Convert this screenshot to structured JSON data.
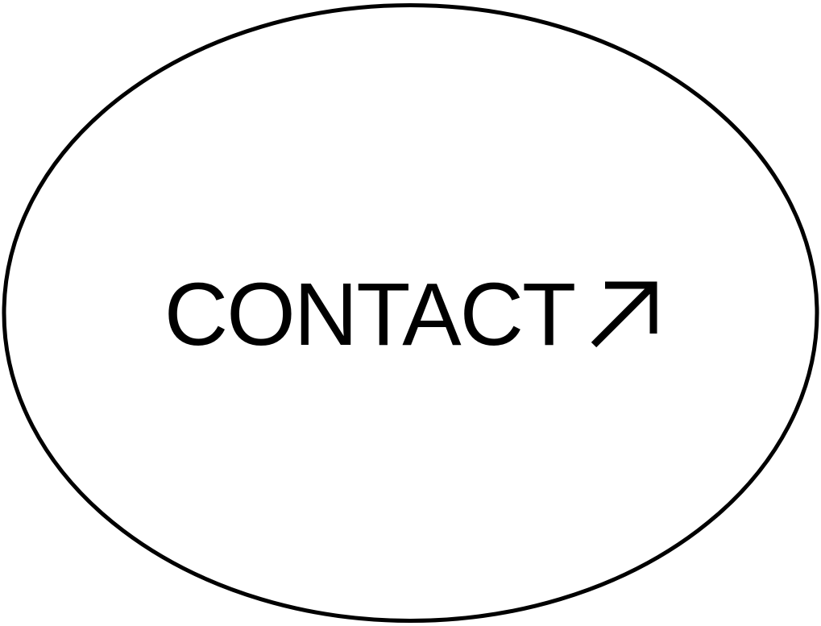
{
  "contact_button": {
    "label": "CONTACT",
    "icon": "arrow-up-right-icon"
  },
  "colors": {
    "background": "#ffffff",
    "foreground": "#000000"
  }
}
